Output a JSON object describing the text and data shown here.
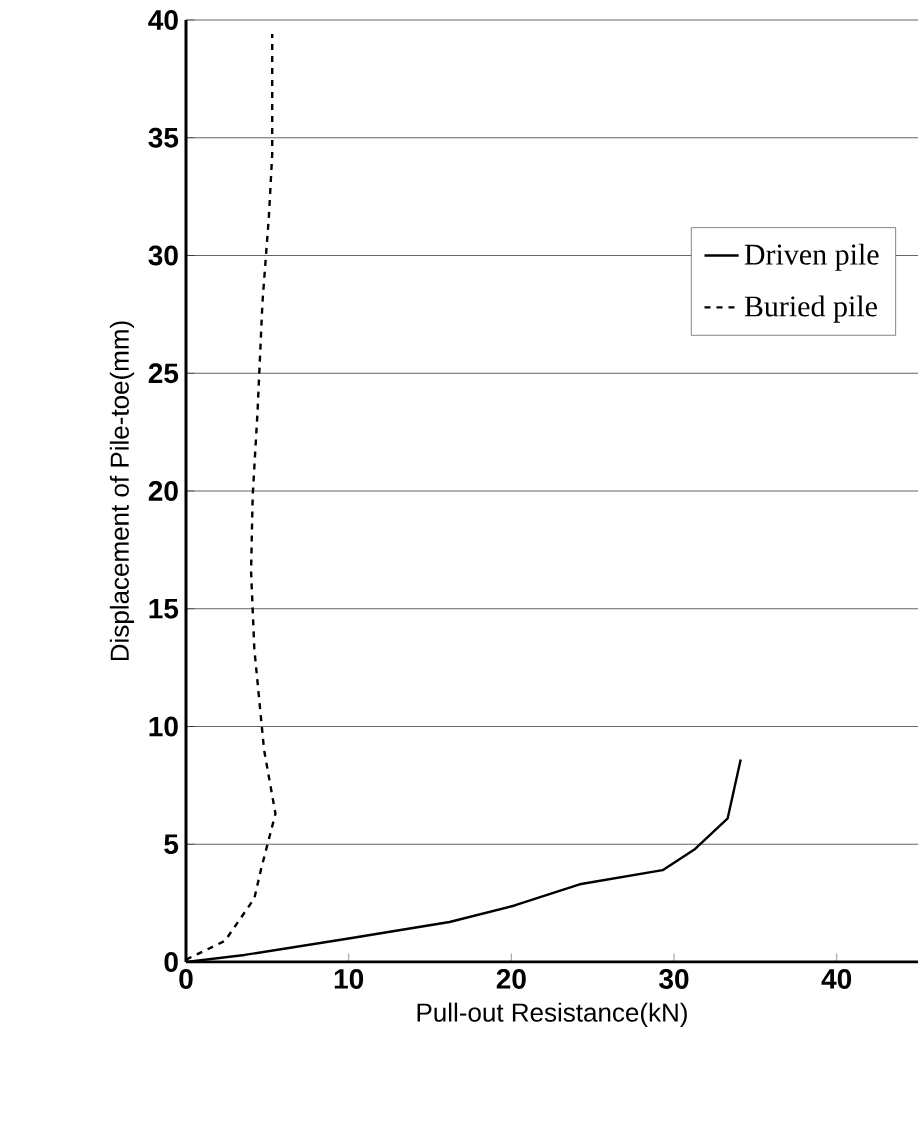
{
  "chart_data": {
    "type": "line",
    "xlabel": "Pull-out Resistance(kN)",
    "ylabel": "Displacement of Pile-toe(mm)",
    "xlim": [
      0,
      45
    ],
    "ylim": [
      0,
      40
    ],
    "xticks": [
      0,
      10,
      20,
      30,
      40
    ],
    "yticks": [
      0,
      5,
      10,
      15,
      20,
      25,
      30,
      35,
      40
    ],
    "grid": "y",
    "legend": "top right",
    "marker": "none",
    "series": [
      {
        "name": "Driven pile",
        "color": "#000000",
        "line_style": "solid",
        "x": [
          0,
          3.6,
          10,
          16.2,
          20.2,
          24.2,
          29.3,
          31.3,
          33.3,
          34.1
        ],
        "values": [
          0,
          0.3,
          1.0,
          1.7,
          2.4,
          3.3,
          3.9,
          4.8,
          6.1,
          8.6
        ]
      },
      {
        "name": "Buried pile",
        "color": "#000000",
        "line_style": "dashed",
        "x": [
          0,
          2.4,
          4.2,
          4.6,
          5.5,
          4.8,
          4.2,
          4.0,
          4.1,
          4.4,
          4.7,
          5.1,
          5.3,
          5.3
        ],
        "values": [
          0.1,
          0.9,
          2.7,
          3.9,
          6.3,
          9,
          13.3,
          16.6,
          19.8,
          23.4,
          28,
          31.7,
          34.3,
          39.4
        ]
      }
    ]
  }
}
